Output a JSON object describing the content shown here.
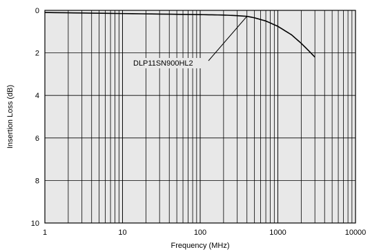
{
  "chart_data": {
    "type": "line",
    "title": "",
    "xlabel": "Frequency (MHz)",
    "ylabel": "Insertion Loss (dB)",
    "x_scale": "log",
    "xlim": [
      1,
      10000
    ],
    "ylim": [
      0,
      10
    ],
    "y_inverted": true,
    "grid": true,
    "colors": {
      "plot_background": "#e8e8e8",
      "grid": "#000000",
      "line": "#000000"
    },
    "x_ticks": [
      "1",
      "10",
      "100",
      "1000",
      "10000"
    ],
    "y_ticks": [
      "0",
      "2",
      "4",
      "6",
      "8",
      "10"
    ],
    "series": [
      {
        "name": "DLP11SN900HL2",
        "x": [
          1,
          10,
          100,
          200,
          300,
          400,
          500,
          700,
          1000,
          1500,
          2000,
          2500,
          3000
        ],
        "y": [
          0.1,
          0.15,
          0.2,
          0.22,
          0.25,
          0.28,
          0.35,
          0.5,
          0.75,
          1.15,
          1.55,
          1.9,
          2.2
        ]
      }
    ],
    "annotations": [
      {
        "text": "DLP11SN900HL2",
        "points_to": {
          "x": 400,
          "y": 0.28
        }
      }
    ]
  }
}
